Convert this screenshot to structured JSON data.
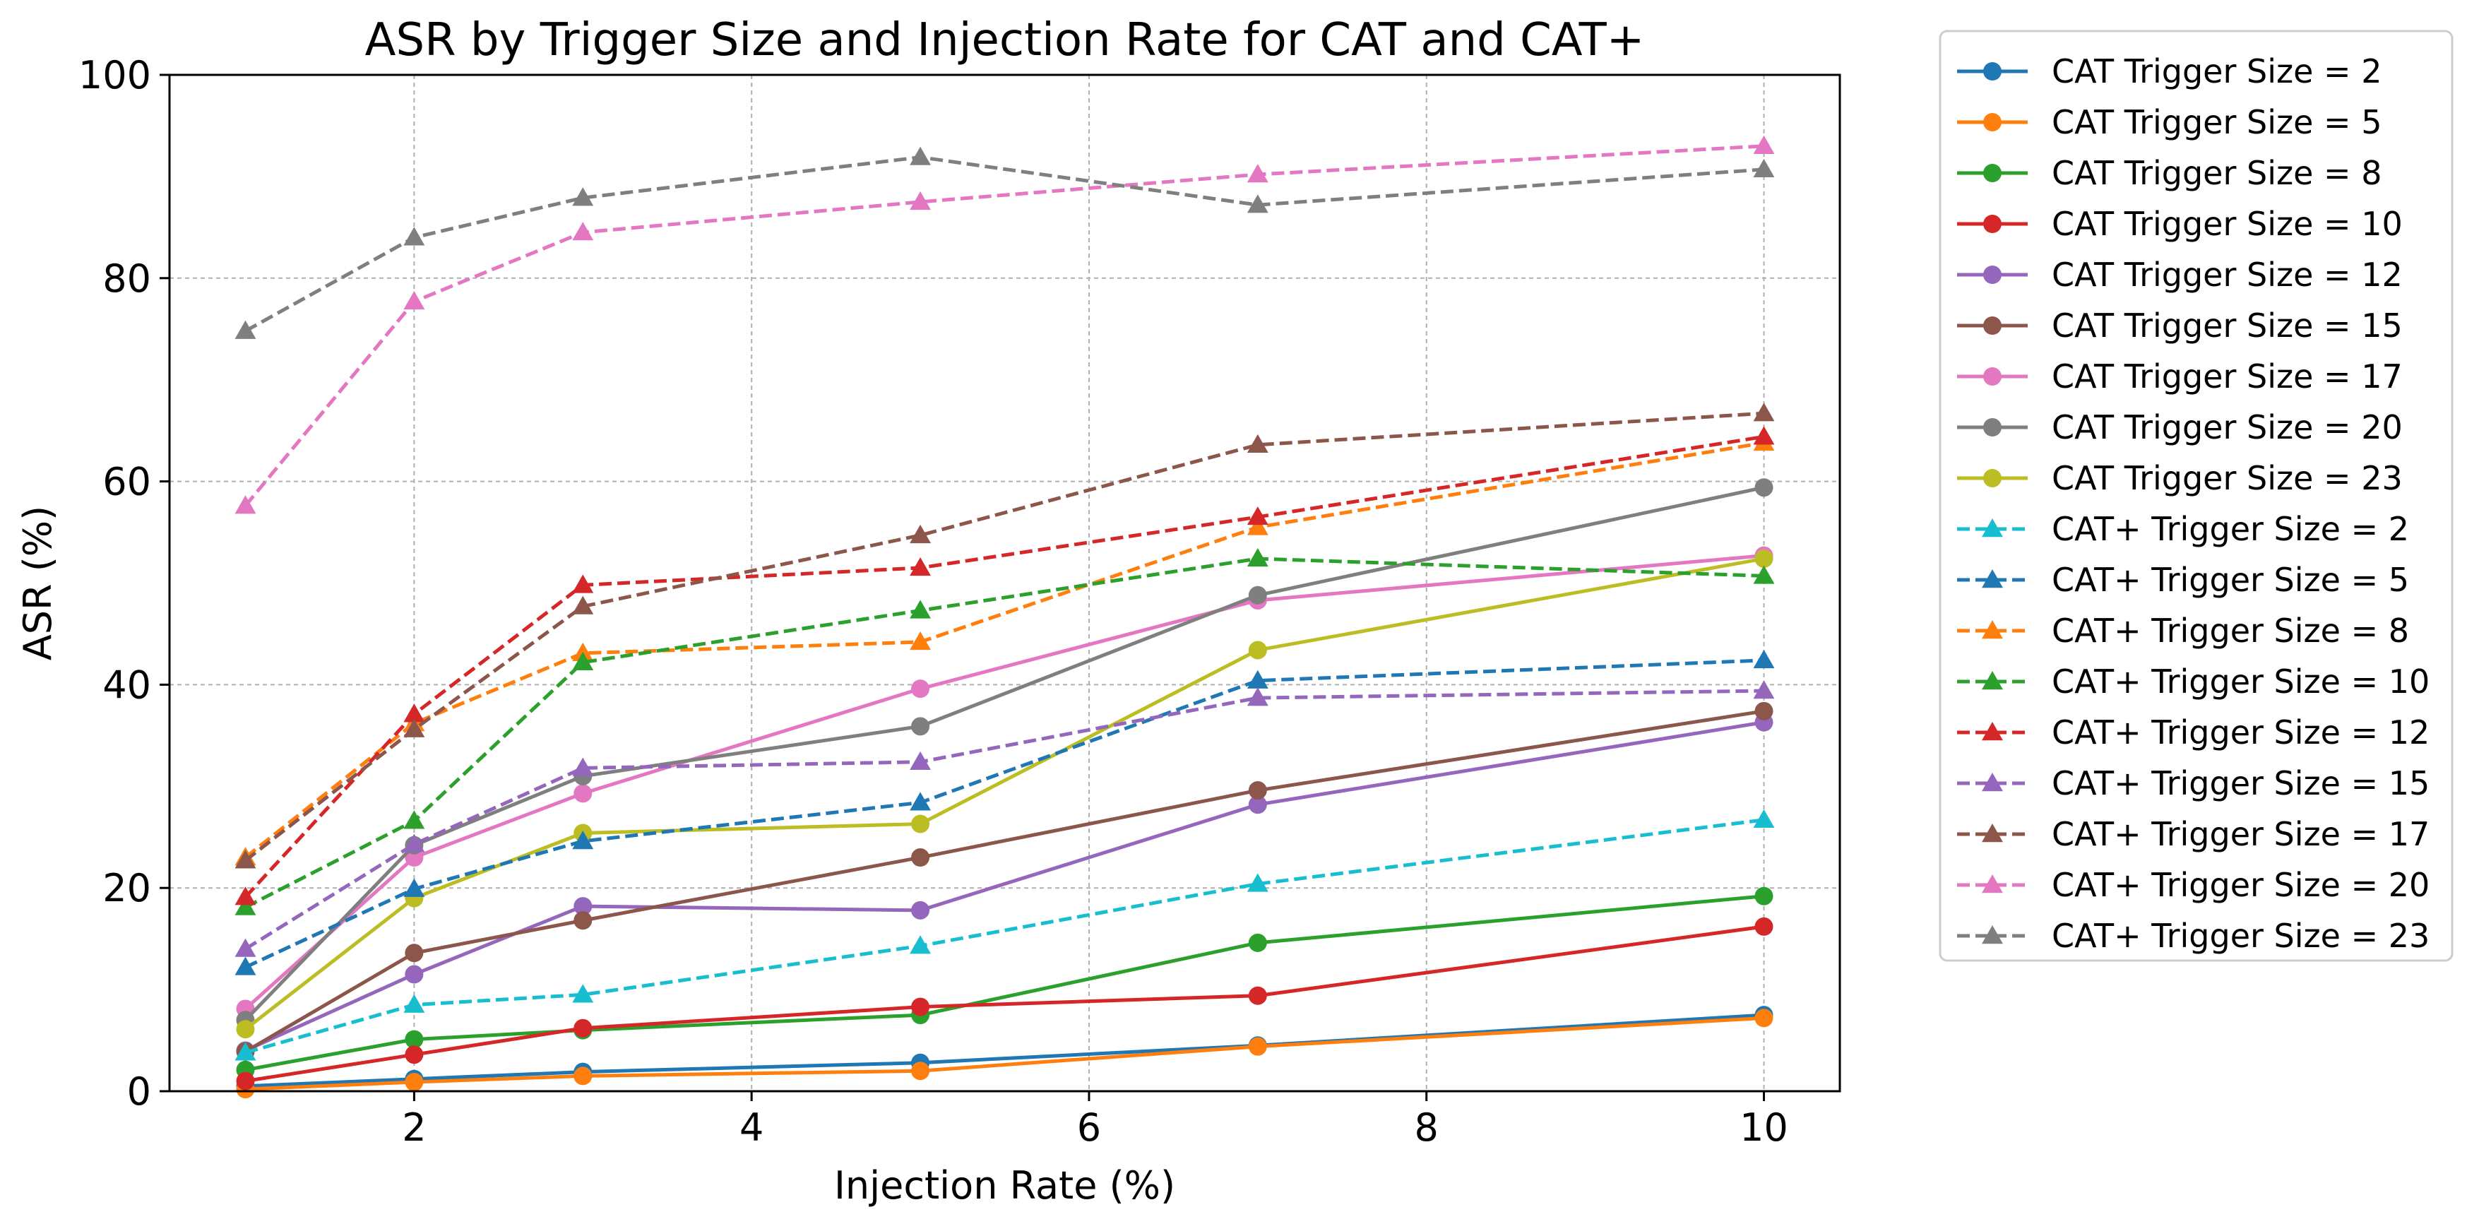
{
  "chart_data": {
    "type": "line",
    "title": "ASR by Trigger Size and Injection Rate for CAT and CAT+",
    "xlabel": "Injection Rate (%)",
    "ylabel": "ASR (%)",
    "xlim": [
      0.55,
      10.45
    ],
    "ylim": [
      0,
      100
    ],
    "xticks": [
      2,
      4,
      6,
      8,
      10
    ],
    "yticks": [
      0,
      20,
      40,
      60,
      80,
      100
    ],
    "grid": true,
    "legend_position": "outside-right",
    "x": [
      1,
      2,
      3,
      5,
      7,
      10
    ],
    "series": [
      {
        "name": "CAT Trigger Size = 2",
        "color": "#1f77b4",
        "linestyle": "solid",
        "marker": "circle",
        "values": [
          0.5,
          1.2,
          1.9,
          2.8,
          4.5,
          7.5
        ]
      },
      {
        "name": "CAT Trigger Size = 5",
        "color": "#ff7f0e",
        "linestyle": "solid",
        "marker": "circle",
        "values": [
          0.2,
          0.9,
          1.5,
          2.0,
          4.4,
          7.2
        ]
      },
      {
        "name": "CAT Trigger Size = 8",
        "color": "#2ca02c",
        "linestyle": "solid",
        "marker": "circle",
        "values": [
          2.1,
          5.1,
          6.0,
          7.5,
          14.6,
          19.2
        ]
      },
      {
        "name": "CAT Trigger Size = 10",
        "color": "#d62728",
        "linestyle": "solid",
        "marker": "circle",
        "values": [
          1.0,
          3.6,
          6.2,
          8.3,
          9.4,
          16.2
        ]
      },
      {
        "name": "CAT Trigger Size = 12",
        "color": "#9467bd",
        "linestyle": "solid",
        "marker": "circle",
        "values": [
          4.0,
          11.5,
          18.2,
          17.8,
          28.2,
          36.3
        ]
      },
      {
        "name": "CAT Trigger Size = 15",
        "color": "#8c564b",
        "linestyle": "solid",
        "marker": "circle",
        "values": [
          3.9,
          13.6,
          16.8,
          23.0,
          29.6,
          37.4
        ]
      },
      {
        "name": "CAT Trigger Size = 17",
        "color": "#e377c2",
        "linestyle": "solid",
        "marker": "circle",
        "values": [
          8.1,
          23.0,
          29.3,
          39.6,
          48.3,
          52.7
        ]
      },
      {
        "name": "CAT Trigger Size = 20",
        "color": "#7f7f7f",
        "linestyle": "solid",
        "marker": "circle",
        "values": [
          7.0,
          24.2,
          31.0,
          35.9,
          48.8,
          59.4
        ]
      },
      {
        "name": "CAT Trigger Size = 23",
        "color": "#bcbd22",
        "linestyle": "solid",
        "marker": "circle",
        "values": [
          6.1,
          19.0,
          25.4,
          26.3,
          43.4,
          52.4
        ]
      },
      {
        "name": "CAT+ Trigger Size = 2",
        "color": "#17becf",
        "linestyle": "dashed",
        "marker": "triangle",
        "values": [
          3.8,
          8.5,
          9.5,
          14.3,
          20.4,
          26.7
        ]
      },
      {
        "name": "CAT+ Trigger Size = 5",
        "color": "#1f77b4",
        "linestyle": "dashed",
        "marker": "triangle",
        "values": [
          12.2,
          19.9,
          24.6,
          28.4,
          40.4,
          42.4
        ]
      },
      {
        "name": "CAT+ Trigger Size = 8",
        "color": "#ff7f0e",
        "linestyle": "dashed",
        "marker": "triangle",
        "values": [
          23.0,
          36.2,
          43.1,
          44.2,
          55.5,
          63.8
        ]
      },
      {
        "name": "CAT+ Trigger Size = 10",
        "color": "#2ca02c",
        "linestyle": "dashed",
        "marker": "triangle",
        "values": [
          18.1,
          26.6,
          42.2,
          47.3,
          52.4,
          50.7
        ]
      },
      {
        "name": "CAT+ Trigger Size = 12",
        "color": "#d62728",
        "linestyle": "dashed",
        "marker": "triangle",
        "values": [
          19.1,
          37.1,
          49.8,
          51.5,
          56.5,
          64.4
        ]
      },
      {
        "name": "CAT+ Trigger Size = 15",
        "color": "#9467bd",
        "linestyle": "dashed",
        "marker": "triangle",
        "values": [
          14.0,
          24.3,
          31.8,
          32.4,
          38.7,
          39.4
        ]
      },
      {
        "name": "CAT+ Trigger Size = 17",
        "color": "#8c564b",
        "linestyle": "dashed",
        "marker": "triangle",
        "values": [
          22.7,
          35.6,
          47.7,
          54.7,
          63.6,
          66.7
        ]
      },
      {
        "name": "CAT+ Trigger Size = 20",
        "color": "#e377c2",
        "linestyle": "dashed",
        "marker": "triangle",
        "values": [
          57.6,
          77.7,
          84.5,
          87.5,
          90.2,
          93.0
        ]
      },
      {
        "name": "CAT+ Trigger Size = 23",
        "color": "#7f7f7f",
        "linestyle": "dashed",
        "marker": "triangle",
        "values": [
          74.8,
          84.0,
          87.9,
          91.9,
          87.2,
          90.7
        ]
      }
    ]
  }
}
